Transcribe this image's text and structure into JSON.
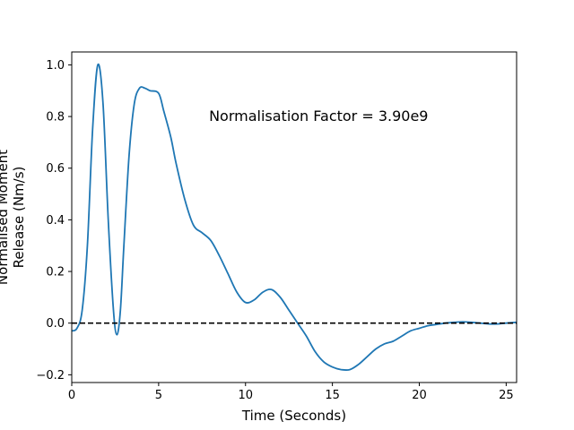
{
  "chart_data": {
    "type": "line",
    "title": "",
    "xlabel": "Time (Seconds)",
    "ylabel_lines": [
      "Normalised Moment",
      "Release (Nm/s)"
    ],
    "xlim": [
      0,
      25.6
    ],
    "ylim": [
      -0.23,
      1.05
    ],
    "xticks": [
      0,
      5,
      10,
      15,
      20,
      25
    ],
    "yticks": [
      -0.2,
      0.0,
      0.2,
      0.4,
      0.6,
      0.8,
      1.0
    ],
    "ytick_labels": [
      "−0.2",
      "0.0",
      "0.2",
      "0.4",
      "0.6",
      "0.8",
      "1.0"
    ],
    "grid": false,
    "annotation": "Normalisation Factor = 3.90e9",
    "series": [
      {
        "color": "#1f77b4",
        "style": "solid",
        "x": [
          0,
          0.3,
          0.6,
          0.9,
          1.2,
          1.5,
          1.8,
          2.1,
          2.4,
          2.6,
          2.8,
          3.0,
          3.3,
          3.6,
          3.9,
          4.2,
          4.5,
          5.0,
          5.3,
          5.7,
          6.0,
          6.5,
          7.0,
          7.5,
          8.0,
          8.5,
          9.0,
          9.5,
          10.0,
          10.5,
          11.0,
          11.5,
          12.0,
          12.5,
          13.0,
          13.5,
          14.0,
          14.5,
          15.0,
          15.5,
          16.0,
          16.5,
          17.0,
          17.5,
          18.0,
          18.5,
          19.0,
          19.5,
          20.0,
          20.5,
          21.0,
          21.5,
          22.0,
          22.5,
          23.0,
          23.5,
          24.0,
          24.5,
          25.0,
          25.6
        ],
        "y": [
          -0.03,
          -0.02,
          0.05,
          0.3,
          0.75,
          1.0,
          0.85,
          0.4,
          0.05,
          -0.045,
          0.05,
          0.3,
          0.65,
          0.85,
          0.91,
          0.91,
          0.9,
          0.89,
          0.82,
          0.72,
          0.62,
          0.48,
          0.38,
          0.35,
          0.32,
          0.26,
          0.19,
          0.12,
          0.08,
          0.09,
          0.12,
          0.13,
          0.1,
          0.05,
          0.0,
          -0.05,
          -0.11,
          -0.15,
          -0.17,
          -0.18,
          -0.18,
          -0.16,
          -0.13,
          -0.1,
          -0.08,
          -0.07,
          -0.05,
          -0.03,
          -0.02,
          -0.01,
          -0.005,
          0.0,
          0.003,
          0.005,
          0.003,
          0.0,
          -0.003,
          -0.003,
          0.0,
          0.003
        ]
      },
      {
        "color": "#000000",
        "style": "dashed",
        "x": [
          0,
          25.6
        ],
        "y": [
          0,
          0
        ]
      }
    ]
  }
}
